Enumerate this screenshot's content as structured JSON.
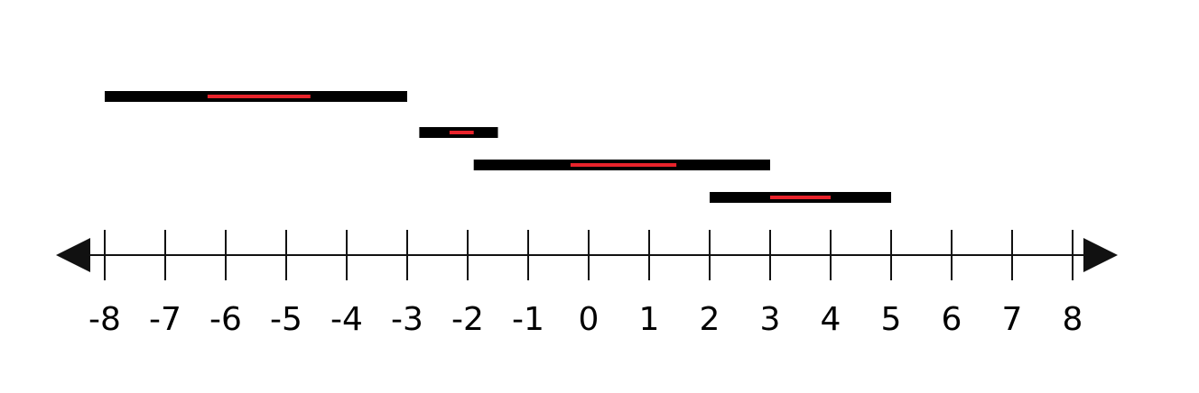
{
  "number_line": {
    "min": -8,
    "max": 8,
    "tick_labels": [
      "-8",
      "-7",
      "-6",
      "-5",
      "-4",
      "-3",
      "-2",
      "-1",
      "0",
      "1",
      "2",
      "3",
      "4",
      "5",
      "6",
      "7",
      "8"
    ],
    "arrows": "both-ends"
  },
  "intervals": [
    {
      "start": -8.0,
      "end": -3.0,
      "inner_start": -6.3,
      "inner_end": -4.6
    },
    {
      "start": -2.8,
      "end": -1.5,
      "inner_start": -2.3,
      "inner_end": -1.9
    },
    {
      "start": -1.9,
      "end": 3.0,
      "inner_start": -0.3,
      "inner_end": 1.45
    },
    {
      "start": 2.0,
      "end": 5.0,
      "inner_start": 3.0,
      "inner_end": 4.0
    }
  ],
  "colors": {
    "line": "#111111",
    "bar": "#000000",
    "highlight": "#e8232b"
  }
}
